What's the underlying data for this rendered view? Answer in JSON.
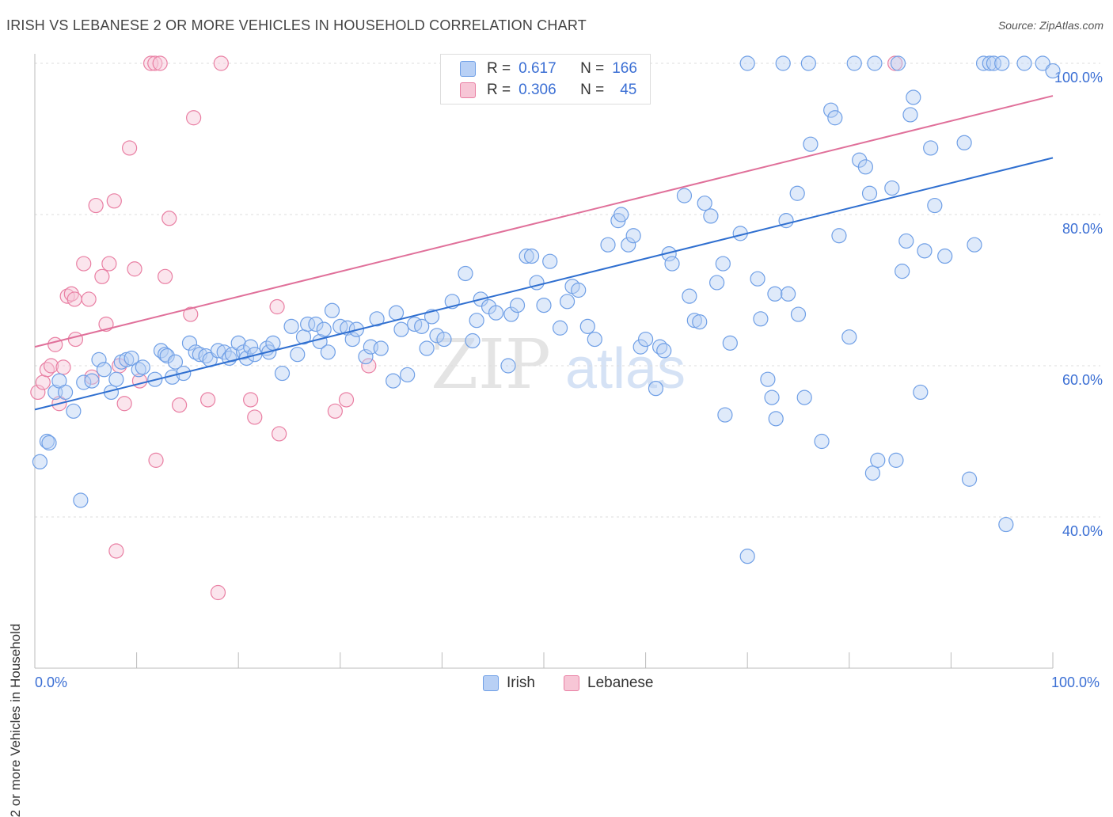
{
  "header": {
    "title": "IRISH VS LEBANESE 2 OR MORE VEHICLES IN HOUSEHOLD CORRELATION CHART",
    "source": "Source: ZipAtlas.com"
  },
  "watermark": {
    "zip": "ZIP",
    "atlas": "atlas"
  },
  "colors": {
    "irish": "#6f9fe6",
    "irish_fill": "#b8d0f5",
    "lebanese": "#e97fa3",
    "lebanese_fill": "#f7c6d6",
    "irish_line": "#2f6fd0",
    "lebanese_line": "#e0709a",
    "axis_text": "#3b6fd4"
  },
  "legend_top": {
    "rows": [
      {
        "r_label": "R =",
        "r_value": "0.617",
        "n_label": "N =",
        "n_value": "166"
      },
      {
        "r_label": "R =",
        "r_value": "0.306",
        "n_label": "N =",
        "n_value": "45"
      }
    ]
  },
  "legend_bottom": {
    "irish": "Irish",
    "lebanese": "Lebanese"
  },
  "chart_data": {
    "type": "scatter",
    "ylabel": "2 or more Vehicles in Household",
    "xlim": [
      0,
      100
    ],
    "ylim": [
      20,
      100
    ],
    "x_tick_labels": [
      "0.0%",
      "100.0%"
    ],
    "y_ticks": [
      40,
      60,
      80,
      100
    ],
    "y_tick_labels": [
      "40.0%",
      "60.0%",
      "80.0%",
      "100.0%"
    ],
    "grid": true,
    "legend_position": "top-center",
    "series": [
      {
        "name": "Irish",
        "color": "#6f9fe6",
        "trend": {
          "x": [
            0,
            100
          ],
          "y": [
            54.2,
            87.5
          ]
        },
        "points": [
          [
            0.5,
            47.3
          ],
          [
            1.2,
            50
          ],
          [
            1.4,
            49.8
          ],
          [
            2,
            56.5
          ],
          [
            2.4,
            58
          ],
          [
            3,
            56.5
          ],
          [
            3.8,
            54
          ],
          [
            4.5,
            42.2
          ],
          [
            4.8,
            57.8
          ],
          [
            5.6,
            58
          ],
          [
            6.3,
            60.8
          ],
          [
            6.8,
            59.5
          ],
          [
            7.5,
            56.5
          ],
          [
            8,
            58.2
          ],
          [
            8.5,
            60.5
          ],
          [
            9,
            60.8
          ],
          [
            9.5,
            61
          ],
          [
            10.2,
            59.5
          ],
          [
            10.6,
            59.8
          ],
          [
            11.8,
            58.2
          ],
          [
            12.4,
            62
          ],
          [
            12.8,
            61.5
          ],
          [
            13,
            61.3
          ],
          [
            13.5,
            58.5
          ],
          [
            13.8,
            60.5
          ],
          [
            14.6,
            59
          ],
          [
            15.2,
            63
          ],
          [
            15.8,
            61.8
          ],
          [
            16.2,
            61.5
          ],
          [
            16.8,
            61.3
          ],
          [
            17.2,
            60.8
          ],
          [
            18,
            62
          ],
          [
            18.6,
            61.8
          ],
          [
            19.1,
            61
          ],
          [
            19.4,
            61.5
          ],
          [
            20,
            63
          ],
          [
            20.5,
            61.8
          ],
          [
            20.8,
            61
          ],
          [
            21.2,
            62.5
          ],
          [
            21.6,
            61.5
          ],
          [
            22.8,
            62.3
          ],
          [
            23,
            61.8
          ],
          [
            23.4,
            63
          ],
          [
            24.3,
            59
          ],
          [
            25.2,
            65.2
          ],
          [
            25.8,
            61.5
          ],
          [
            26.4,
            63.8
          ],
          [
            26.8,
            65.5
          ],
          [
            27.6,
            65.5
          ],
          [
            28,
            63.2
          ],
          [
            28.4,
            64.8
          ],
          [
            28.8,
            61.8
          ],
          [
            29.2,
            67.3
          ],
          [
            30,
            65.2
          ],
          [
            30.7,
            65
          ],
          [
            31.2,
            63.5
          ],
          [
            31.6,
            64.8
          ],
          [
            32.5,
            61.2
          ],
          [
            33,
            62.5
          ],
          [
            33.6,
            66.2
          ],
          [
            34,
            62.3
          ],
          [
            35.2,
            58
          ],
          [
            35.5,
            67
          ],
          [
            36,
            64.8
          ],
          [
            36.6,
            58.8
          ],
          [
            37.3,
            65.5
          ],
          [
            38,
            65.2
          ],
          [
            38.5,
            62.3
          ],
          [
            39,
            66.5
          ],
          [
            39.5,
            64
          ],
          [
            40.2,
            63.5
          ],
          [
            41,
            68.5
          ],
          [
            42.3,
            72.2
          ],
          [
            43,
            63.3
          ],
          [
            43.4,
            66
          ],
          [
            43.8,
            68.8
          ],
          [
            44.6,
            67.8
          ],
          [
            45.3,
            67
          ],
          [
            46.5,
            60
          ],
          [
            46.8,
            66.8
          ],
          [
            47.4,
            68
          ],
          [
            48.3,
            74.5
          ],
          [
            48.8,
            74.5
          ],
          [
            49.3,
            71
          ],
          [
            50,
            68
          ],
          [
            50.6,
            73.8
          ],
          [
            51.6,
            65
          ],
          [
            52.3,
            68.5
          ],
          [
            52.8,
            70.5
          ],
          [
            53.4,
            70
          ],
          [
            54.3,
            65.2
          ],
          [
            55,
            63.5
          ],
          [
            56.3,
            76
          ],
          [
            57.3,
            79.2
          ],
          [
            57.6,
            80
          ],
          [
            58.3,
            76
          ],
          [
            58.8,
            77.2
          ],
          [
            59.5,
            62.5
          ],
          [
            60,
            63.5
          ],
          [
            61,
            57
          ],
          [
            61.4,
            62.5
          ],
          [
            61.8,
            62
          ],
          [
            62.3,
            74.8
          ],
          [
            62.6,
            73.5
          ],
          [
            63.8,
            82.5
          ],
          [
            64.3,
            69.2
          ],
          [
            64.8,
            66
          ],
          [
            65.3,
            65.8
          ],
          [
            65.8,
            81.5
          ],
          [
            66.4,
            79.8
          ],
          [
            67,
            71
          ],
          [
            67.6,
            73.5
          ],
          [
            67.8,
            53.5
          ],
          [
            68.3,
            63
          ],
          [
            69.3,
            77.5
          ],
          [
            70,
            34.8
          ],
          [
            71,
            71.5
          ],
          [
            71.3,
            66.2
          ],
          [
            72,
            58.2
          ],
          [
            72.4,
            55.8
          ],
          [
            72.7,
            69.5
          ],
          [
            72.8,
            53
          ],
          [
            73.8,
            79.2
          ],
          [
            74,
            69.5
          ],
          [
            74.9,
            82.8
          ],
          [
            75,
            66.8
          ],
          [
            75.6,
            55.8
          ],
          [
            76.2,
            89.3
          ],
          [
            77.3,
            50
          ],
          [
            78.2,
            93.8
          ],
          [
            78.6,
            92.8
          ],
          [
            79,
            77.2
          ],
          [
            80,
            63.8
          ],
          [
            81,
            87.2
          ],
          [
            81.6,
            86.3
          ],
          [
            82,
            82.8
          ],
          [
            82.3,
            45.8
          ],
          [
            82.8,
            47.5
          ],
          [
            84.2,
            83.5
          ],
          [
            84.6,
            47.5
          ],
          [
            85.2,
            72.5
          ],
          [
            85.6,
            76.5
          ],
          [
            86,
            93.2
          ],
          [
            86.3,
            95.5
          ],
          [
            87,
            56.5
          ],
          [
            87.4,
            75.2
          ],
          [
            88,
            88.8
          ],
          [
            88.4,
            81.2
          ],
          [
            89.4,
            74.5
          ],
          [
            91.3,
            89.5
          ],
          [
            91.8,
            45
          ],
          [
            92.3,
            76
          ],
          [
            93.2,
            100
          ],
          [
            93.8,
            100
          ],
          [
            94.2,
            100
          ],
          [
            95,
            100
          ],
          [
            95.4,
            39
          ],
          [
            97.2,
            100
          ],
          [
            99,
            100
          ],
          [
            100,
            99
          ],
          [
            70,
            100
          ],
          [
            73.5,
            100
          ],
          [
            76,
            100
          ],
          [
            80.5,
            100
          ],
          [
            82.5,
            100
          ],
          [
            84.8,
            100
          ]
        ]
      },
      {
        "name": "Lebanese",
        "color": "#e97fa3",
        "trend": {
          "x": [
            0,
            100
          ],
          "y": [
            62.5,
            95.7
          ]
        },
        "points": [
          [
            0.3,
            56.5
          ],
          [
            0.8,
            57.8
          ],
          [
            1.2,
            59.5
          ],
          [
            1.6,
            60
          ],
          [
            2,
            62.8
          ],
          [
            2.4,
            55
          ],
          [
            2.8,
            59.8
          ],
          [
            3.2,
            69.2
          ],
          [
            3.6,
            69.5
          ],
          [
            3.9,
            68.8
          ],
          [
            4,
            63.5
          ],
          [
            4.8,
            73.5
          ],
          [
            5.3,
            68.8
          ],
          [
            5.6,
            58.5
          ],
          [
            6,
            81.2
          ],
          [
            6.6,
            71.8
          ],
          [
            7,
            65.5
          ],
          [
            7.3,
            73.5
          ],
          [
            7.8,
            81.8
          ],
          [
            8,
            35.5
          ],
          [
            8.3,
            60
          ],
          [
            8.8,
            55
          ],
          [
            9.3,
            88.8
          ],
          [
            9.8,
            72.8
          ],
          [
            10.3,
            58
          ],
          [
            11.4,
            100
          ],
          [
            11.8,
            100
          ],
          [
            11.9,
            47.5
          ],
          [
            12.3,
            100
          ],
          [
            12.8,
            71.8
          ],
          [
            13.2,
            79.5
          ],
          [
            14.2,
            54.8
          ],
          [
            15.3,
            66.8
          ],
          [
            15.6,
            92.8
          ],
          [
            17,
            55.5
          ],
          [
            18,
            30
          ],
          [
            18.3,
            100
          ],
          [
            21.2,
            55.5
          ],
          [
            21.6,
            53.2
          ],
          [
            23.8,
            67.8
          ],
          [
            24,
            51
          ],
          [
            29.5,
            54
          ],
          [
            30.6,
            55.5
          ],
          [
            32.8,
            60
          ],
          [
            84.5,
            100
          ]
        ]
      }
    ]
  }
}
